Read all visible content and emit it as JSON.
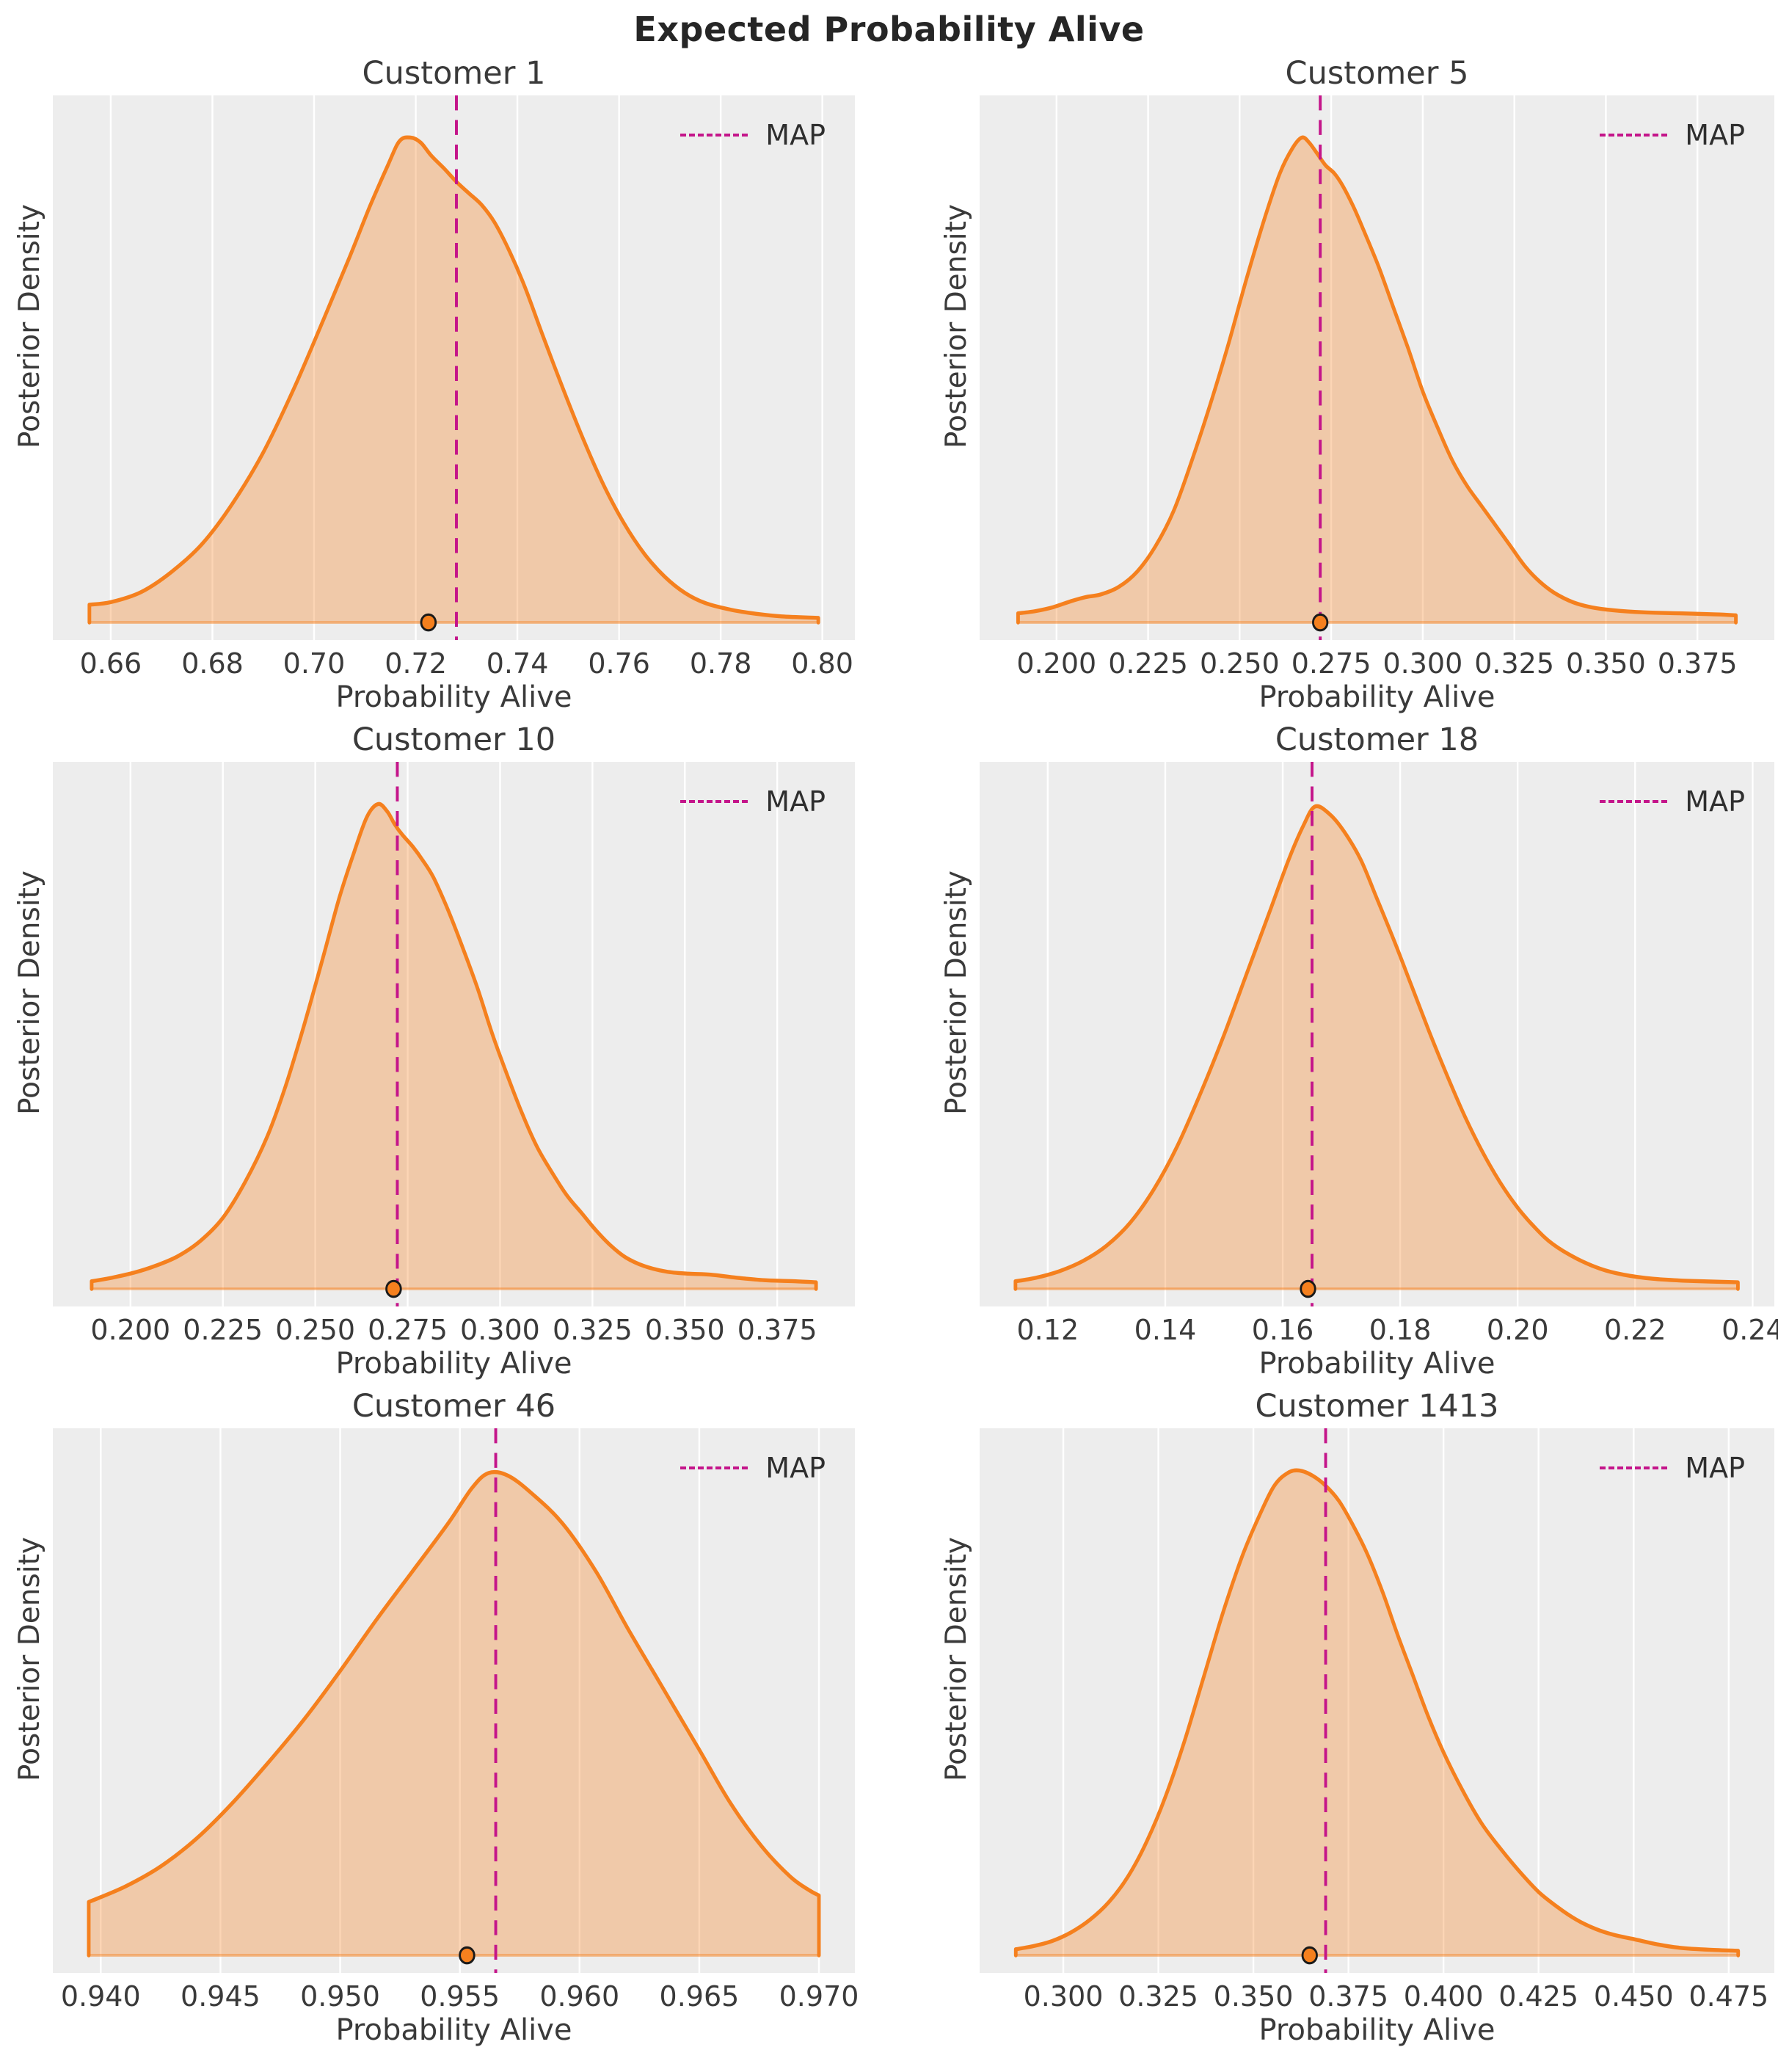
{
  "suptitle": "Expected Probability Alive",
  "style": {
    "figure_bg": "#FFFFFF",
    "plot_bg": "#EDEDED",
    "grid_color": "#FFFFFF",
    "kde_line_color": "#F5801E",
    "kde_fill_color": "rgba(245,128,30,0.33)",
    "kde_baseline_color": "rgba(245,128,30,0.5)",
    "map_line_color": "#C4158A",
    "dot_fill_color": "#F5801E",
    "dot_edge_color": "#1A1A1A",
    "text_color": "#2E2E2E"
  },
  "chart_data": {
    "type": "area",
    "kind": "posterior-kde-grid",
    "title": "Expected Probability Alive",
    "legend_label": "MAP",
    "grid": true,
    "legend_position": "upper right",
    "subplots": [
      {
        "title": "Customer 1",
        "xlabel": "Probability Alive",
        "ylabel": "Posterior Density",
        "legend": "MAP",
        "xlim": [
          0.6486,
          0.8064
        ],
        "xtick_values": [
          0.66,
          0.68,
          0.7,
          0.72,
          0.74,
          0.76,
          0.78,
          0.8
        ],
        "xtick_labels": [
          "0.66",
          "0.68",
          "0.70",
          "0.72",
          "0.74",
          "0.76",
          "0.78",
          "0.80"
        ],
        "map": 0.728,
        "observed": 0.7225,
        "curve": [
          [
            0.6558,
            0
          ],
          [
            0.6558,
            0.035
          ],
          [
            0.66,
            0.04
          ],
          [
            0.666,
            0.06
          ],
          [
            0.672,
            0.1
          ],
          [
            0.678,
            0.155
          ],
          [
            0.684,
            0.235
          ],
          [
            0.69,
            0.335
          ],
          [
            0.696,
            0.46
          ],
          [
            0.702,
            0.6
          ],
          [
            0.707,
            0.72
          ],
          [
            0.711,
            0.82
          ],
          [
            0.7145,
            0.9
          ],
          [
            0.7168,
            0.948
          ],
          [
            0.719,
            0.955
          ],
          [
            0.721,
            0.945
          ],
          [
            0.723,
            0.92
          ],
          [
            0.7255,
            0.895
          ],
          [
            0.728,
            0.868
          ],
          [
            0.7305,
            0.845
          ],
          [
            0.733,
            0.822
          ],
          [
            0.7355,
            0.788
          ],
          [
            0.7385,
            0.73
          ],
          [
            0.7415,
            0.66
          ],
          [
            0.745,
            0.565
          ],
          [
            0.749,
            0.46
          ],
          [
            0.753,
            0.36
          ],
          [
            0.757,
            0.27
          ],
          [
            0.761,
            0.195
          ],
          [
            0.765,
            0.135
          ],
          [
            0.769,
            0.09
          ],
          [
            0.773,
            0.058
          ],
          [
            0.777,
            0.038
          ],
          [
            0.782,
            0.025
          ],
          [
            0.787,
            0.017
          ],
          [
            0.792,
            0.012
          ],
          [
            0.7992,
            0.009
          ],
          [
            0.7992,
            0
          ]
        ]
      },
      {
        "title": "Customer 5",
        "xlabel": "Probability Alive",
        "ylabel": "Posterior Density",
        "legend": "MAP",
        "xlim": [
          0.179,
          0.396
        ],
        "xtick_values": [
          0.2,
          0.225,
          0.25,
          0.275,
          0.3,
          0.325,
          0.35,
          0.375
        ],
        "xtick_labels": [
          "0.200",
          "0.225",
          "0.250",
          "0.275",
          "0.300",
          "0.325",
          "0.350",
          "0.375"
        ],
        "map": 0.272,
        "observed": 0.272,
        "curve": [
          [
            0.1895,
            0
          ],
          [
            0.1895,
            0.018
          ],
          [
            0.194,
            0.022
          ],
          [
            0.199,
            0.03
          ],
          [
            0.204,
            0.042
          ],
          [
            0.208,
            0.05
          ],
          [
            0.212,
            0.055
          ],
          [
            0.217,
            0.07
          ],
          [
            0.222,
            0.1
          ],
          [
            0.227,
            0.15
          ],
          [
            0.232,
            0.22
          ],
          [
            0.237,
            0.32
          ],
          [
            0.242,
            0.43
          ],
          [
            0.247,
            0.55
          ],
          [
            0.252,
            0.68
          ],
          [
            0.257,
            0.8
          ],
          [
            0.261,
            0.885
          ],
          [
            0.2645,
            0.935
          ],
          [
            0.267,
            0.955
          ],
          [
            0.269,
            0.945
          ],
          [
            0.2715,
            0.92
          ],
          [
            0.2735,
            0.9
          ],
          [
            0.2758,
            0.885
          ],
          [
            0.278,
            0.862
          ],
          [
            0.281,
            0.82
          ],
          [
            0.284,
            0.77
          ],
          [
            0.288,
            0.7
          ],
          [
            0.292,
            0.62
          ],
          [
            0.296,
            0.54
          ],
          [
            0.3,
            0.455
          ],
          [
            0.304,
            0.385
          ],
          [
            0.308,
            0.32
          ],
          [
            0.312,
            0.27
          ],
          [
            0.316,
            0.23
          ],
          [
            0.32,
            0.19
          ],
          [
            0.324,
            0.15
          ],
          [
            0.328,
            0.11
          ],
          [
            0.332,
            0.08
          ],
          [
            0.336,
            0.058
          ],
          [
            0.341,
            0.04
          ],
          [
            0.346,
            0.03
          ],
          [
            0.352,
            0.024
          ],
          [
            0.36,
            0.02
          ],
          [
            0.37,
            0.018
          ],
          [
            0.38,
            0.016
          ],
          [
            0.3855,
            0.014
          ],
          [
            0.3855,
            0
          ]
        ]
      },
      {
        "title": "Customer 10",
        "xlabel": "Probability Alive",
        "ylabel": "Posterior Density",
        "legend": "MAP",
        "xlim": [
          0.179,
          0.396
        ],
        "xtick_values": [
          0.2,
          0.225,
          0.25,
          0.275,
          0.3,
          0.325,
          0.35,
          0.375
        ],
        "xtick_labels": [
          "0.200",
          "0.225",
          "0.250",
          "0.275",
          "0.300",
          "0.325",
          "0.350",
          "0.375"
        ],
        "map": 0.2722,
        "observed": 0.2712,
        "curve": [
          [
            0.1895,
            0
          ],
          [
            0.1895,
            0.015
          ],
          [
            0.195,
            0.022
          ],
          [
            0.201,
            0.032
          ],
          [
            0.207,
            0.046
          ],
          [
            0.213,
            0.065
          ],
          [
            0.219,
            0.095
          ],
          [
            0.225,
            0.14
          ],
          [
            0.231,
            0.21
          ],
          [
            0.237,
            0.3
          ],
          [
            0.242,
            0.4
          ],
          [
            0.247,
            0.52
          ],
          [
            0.252,
            0.65
          ],
          [
            0.2565,
            0.77
          ],
          [
            0.2605,
            0.86
          ],
          [
            0.264,
            0.93
          ],
          [
            0.267,
            0.955
          ],
          [
            0.2695,
            0.94
          ],
          [
            0.2715,
            0.915
          ],
          [
            0.2735,
            0.895
          ],
          [
            0.2765,
            0.87
          ],
          [
            0.279,
            0.845
          ],
          [
            0.282,
            0.81
          ],
          [
            0.286,
            0.745
          ],
          [
            0.29,
            0.67
          ],
          [
            0.294,
            0.59
          ],
          [
            0.298,
            0.5
          ],
          [
            0.302,
            0.42
          ],
          [
            0.306,
            0.345
          ],
          [
            0.31,
            0.28
          ],
          [
            0.314,
            0.23
          ],
          [
            0.318,
            0.185
          ],
          [
            0.322,
            0.15
          ],
          [
            0.326,
            0.115
          ],
          [
            0.33,
            0.085
          ],
          [
            0.334,
            0.062
          ],
          [
            0.339,
            0.045
          ],
          [
            0.345,
            0.034
          ],
          [
            0.351,
            0.03
          ],
          [
            0.357,
            0.028
          ],
          [
            0.364,
            0.022
          ],
          [
            0.372,
            0.017
          ],
          [
            0.38,
            0.015
          ],
          [
            0.3855,
            0.013
          ],
          [
            0.3855,
            0
          ]
        ]
      },
      {
        "title": "Customer 18",
        "xlabel": "Probability Alive",
        "ylabel": "Posterior Density",
        "legend": "MAP",
        "xlim": [
          0.1084,
          0.2437
        ],
        "xtick_values": [
          0.12,
          0.14,
          0.16,
          0.18,
          0.2,
          0.22,
          0.24
        ],
        "xtick_labels": [
          "0.12",
          "0.14",
          "0.16",
          "0.18",
          "0.20",
          "0.22",
          "0.24"
        ],
        "map": 0.165,
        "observed": 0.1643,
        "curve": [
          [
            0.1145,
            0
          ],
          [
            0.1145,
            0.015
          ],
          [
            0.118,
            0.022
          ],
          [
            0.122,
            0.035
          ],
          [
            0.126,
            0.055
          ],
          [
            0.13,
            0.085
          ],
          [
            0.134,
            0.13
          ],
          [
            0.138,
            0.195
          ],
          [
            0.142,
            0.28
          ],
          [
            0.146,
            0.385
          ],
          [
            0.15,
            0.5
          ],
          [
            0.154,
            0.625
          ],
          [
            0.158,
            0.75
          ],
          [
            0.161,
            0.845
          ],
          [
            0.1635,
            0.912
          ],
          [
            0.1655,
            0.95
          ],
          [
            0.168,
            0.935
          ],
          [
            0.1705,
            0.9
          ],
          [
            0.1733,
            0.845
          ],
          [
            0.176,
            0.77
          ],
          [
            0.179,
            0.685
          ],
          [
            0.182,
            0.595
          ],
          [
            0.185,
            0.505
          ],
          [
            0.188,
            0.42
          ],
          [
            0.191,
            0.34
          ],
          [
            0.194,
            0.27
          ],
          [
            0.197,
            0.21
          ],
          [
            0.2,
            0.16
          ],
          [
            0.203,
            0.12
          ],
          [
            0.206,
            0.088
          ],
          [
            0.21,
            0.06
          ],
          [
            0.214,
            0.04
          ],
          [
            0.218,
            0.028
          ],
          [
            0.223,
            0.02
          ],
          [
            0.229,
            0.016
          ],
          [
            0.2375,
            0.013
          ],
          [
            0.2375,
            0
          ]
        ]
      },
      {
        "title": "Customer 46",
        "xlabel": "Probability Alive",
        "ylabel": "Posterior Density",
        "legend": "MAP",
        "xlim": [
          0.938,
          0.9715
        ],
        "xtick_values": [
          0.94,
          0.945,
          0.95,
          0.955,
          0.96,
          0.965,
          0.97
        ],
        "xtick_labels": [
          "0.940",
          "0.945",
          "0.950",
          "0.955",
          "0.960",
          "0.965",
          "0.970"
        ],
        "map": 0.9565,
        "observed": 0.9553,
        "curve": [
          [
            0.9395,
            0
          ],
          [
            0.9395,
            0.105
          ],
          [
            0.941,
            0.135
          ],
          [
            0.9425,
            0.175
          ],
          [
            0.944,
            0.23
          ],
          [
            0.9455,
            0.3
          ],
          [
            0.947,
            0.38
          ],
          [
            0.9485,
            0.465
          ],
          [
            0.95,
            0.56
          ],
          [
            0.9515,
            0.66
          ],
          [
            0.953,
            0.755
          ],
          [
            0.9545,
            0.85
          ],
          [
            0.9555,
            0.92
          ],
          [
            0.9562,
            0.95
          ],
          [
            0.957,
            0.945
          ],
          [
            0.958,
            0.91
          ],
          [
            0.9593,
            0.85
          ],
          [
            0.9607,
            0.755
          ],
          [
            0.962,
            0.645
          ],
          [
            0.9635,
            0.525
          ],
          [
            0.965,
            0.405
          ],
          [
            0.9663,
            0.3
          ],
          [
            0.9676,
            0.215
          ],
          [
            0.9688,
            0.155
          ],
          [
            0.9696,
            0.128
          ],
          [
            0.97,
            0.118
          ],
          [
            0.97,
            0
          ]
        ]
      },
      {
        "title": "Customer 1413",
        "xlabel": "Probability Alive",
        "ylabel": "Posterior Density",
        "legend": "MAP",
        "xlim": [
          0.278,
          0.487
        ],
        "xtick_values": [
          0.3,
          0.325,
          0.35,
          0.375,
          0.4,
          0.425,
          0.45,
          0.475
        ],
        "xtick_labels": [
          "0.300",
          "0.325",
          "0.350",
          "0.375",
          "0.400",
          "0.425",
          "0.450",
          "0.475"
        ],
        "map": 0.369,
        "observed": 0.3648,
        "curve": [
          [
            0.2875,
            0
          ],
          [
            0.2875,
            0.012
          ],
          [
            0.292,
            0.018
          ],
          [
            0.297,
            0.028
          ],
          [
            0.302,
            0.045
          ],
          [
            0.307,
            0.07
          ],
          [
            0.312,
            0.105
          ],
          [
            0.317,
            0.155
          ],
          [
            0.322,
            0.225
          ],
          [
            0.327,
            0.315
          ],
          [
            0.332,
            0.425
          ],
          [
            0.337,
            0.55
          ],
          [
            0.342,
            0.675
          ],
          [
            0.347,
            0.785
          ],
          [
            0.3515,
            0.865
          ],
          [
            0.3555,
            0.925
          ],
          [
            0.359,
            0.95
          ],
          [
            0.362,
            0.955
          ],
          [
            0.3655,
            0.945
          ],
          [
            0.369,
            0.925
          ],
          [
            0.3725,
            0.895
          ],
          [
            0.376,
            0.85
          ],
          [
            0.38,
            0.79
          ],
          [
            0.384,
            0.715
          ],
          [
            0.388,
            0.63
          ],
          [
            0.392,
            0.55
          ],
          [
            0.396,
            0.47
          ],
          [
            0.4,
            0.4
          ],
          [
            0.405,
            0.325
          ],
          [
            0.41,
            0.26
          ],
          [
            0.415,
            0.21
          ],
          [
            0.42,
            0.165
          ],
          [
            0.425,
            0.125
          ],
          [
            0.43,
            0.095
          ],
          [
            0.435,
            0.07
          ],
          [
            0.44,
            0.052
          ],
          [
            0.445,
            0.04
          ],
          [
            0.45,
            0.032
          ],
          [
            0.456,
            0.022
          ],
          [
            0.462,
            0.015
          ],
          [
            0.47,
            0.011
          ],
          [
            0.4775,
            0.009
          ],
          [
            0.4775,
            0
          ]
        ]
      }
    ]
  }
}
